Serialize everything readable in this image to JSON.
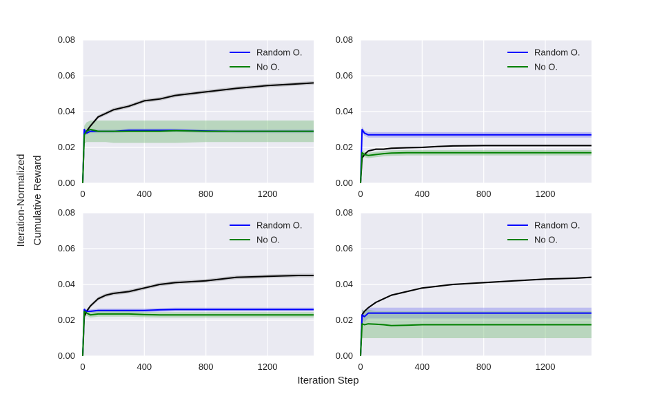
{
  "figure": {
    "ylabel_lines": [
      "Iteration-Normalized",
      "Cumulative Reward"
    ],
    "xlabel": "Iteration Step"
  },
  "colors": {
    "background": "#eaeaf2",
    "grid": "#ffffff",
    "black_line": "#000000",
    "random": "#0000ff",
    "no": "#008000",
    "random_band": "#8888ee",
    "no_band": "#7fbf7f",
    "black_band": "#999999"
  },
  "chart_data": [
    {
      "type": "line",
      "panel": "top-left",
      "xlim": [
        0,
        1500
      ],
      "ylim": [
        0,
        0.08
      ],
      "xticks": [
        "0",
        "400",
        "800",
        "1200"
      ],
      "yticks": [
        "0.00",
        "0.02",
        "0.04",
        "0.06",
        "0.08"
      ],
      "legend": "top-right",
      "grid": true,
      "x": [
        0,
        10,
        25,
        50,
        100,
        150,
        200,
        300,
        400,
        500,
        600,
        800,
        1000,
        1200,
        1400,
        1500
      ],
      "series": [
        {
          "name": "",
          "color": "black",
          "values": [
            0.0,
            0.027,
            0.029,
            0.032,
            0.037,
            0.039,
            0.041,
            0.043,
            0.046,
            0.047,
            0.049,
            0.051,
            0.053,
            0.0545,
            0.0555,
            0.056
          ],
          "band": 0.001
        },
        {
          "name": "Random O.",
          "color": "random",
          "values": [
            0.0,
            0.03,
            0.028,
            0.029,
            0.029,
            0.029,
            0.029,
            0.0295,
            0.0295,
            0.0295,
            0.0295,
            0.0292,
            0.029,
            0.029,
            0.029,
            0.029
          ],
          "band": 0.001
        },
        {
          "name": "No O.",
          "color": "no",
          "values": [
            0.0,
            0.027,
            0.029,
            0.03,
            0.029,
            0.029,
            0.029,
            0.029,
            0.029,
            0.029,
            0.0293,
            0.029,
            0.029,
            0.029,
            0.029,
            0.029
          ],
          "band_lower": [
            0.0,
            0.022,
            0.023,
            0.023,
            0.023,
            0.023,
            0.0225,
            0.0225,
            0.0225,
            0.0225,
            0.0225,
            0.023,
            0.023,
            0.023,
            0.023,
            0.023
          ],
          "band_upper": [
            0.0,
            0.032,
            0.034,
            0.035,
            0.035,
            0.035,
            0.035,
            0.035,
            0.035,
            0.035,
            0.035,
            0.035,
            0.035,
            0.035,
            0.035,
            0.035
          ]
        }
      ]
    },
    {
      "type": "line",
      "panel": "top-right",
      "xlim": [
        0,
        1500
      ],
      "ylim": [
        0,
        0.08
      ],
      "xticks": [
        "0",
        "400",
        "800",
        "1200"
      ],
      "yticks": [
        "0.00",
        "0.02",
        "0.04",
        "0.06",
        "0.08"
      ],
      "legend": "top-right",
      "grid": true,
      "x": [
        0,
        10,
        25,
        50,
        100,
        150,
        200,
        300,
        400,
        500,
        600,
        800,
        1000,
        1200,
        1400,
        1500
      ],
      "series": [
        {
          "name": "",
          "color": "black",
          "values": [
            0.0,
            0.014,
            0.016,
            0.018,
            0.019,
            0.019,
            0.0195,
            0.0198,
            0.02,
            0.0205,
            0.0208,
            0.021,
            0.021,
            0.021,
            0.021,
            0.021
          ],
          "band": 0.0005
        },
        {
          "name": "Random O.",
          "color": "random",
          "values": [
            0.0,
            0.03,
            0.028,
            0.027,
            0.027,
            0.027,
            0.027,
            0.027,
            0.027,
            0.027,
            0.027,
            0.027,
            0.027,
            0.027,
            0.027,
            0.027
          ],
          "band": 0.0015
        },
        {
          "name": "No O.",
          "color": "no",
          "values": [
            0.0,
            0.017,
            0.016,
            0.0155,
            0.016,
            0.0165,
            0.0168,
            0.017,
            0.017,
            0.017,
            0.017,
            0.017,
            0.017,
            0.017,
            0.017,
            0.017
          ],
          "band": 0.0015
        }
      ]
    },
    {
      "type": "line",
      "panel": "bottom-left",
      "xlim": [
        0,
        1500
      ],
      "ylim": [
        0,
        0.08
      ],
      "xticks": [
        "0",
        "400",
        "800",
        "1200"
      ],
      "yticks": [
        "0.00",
        "0.02",
        "0.04",
        "0.06",
        "0.08"
      ],
      "legend": "top-right",
      "grid": true,
      "x": [
        0,
        10,
        25,
        50,
        100,
        150,
        200,
        300,
        400,
        500,
        600,
        800,
        1000,
        1200,
        1400,
        1500
      ],
      "series": [
        {
          "name": "",
          "color": "black",
          "values": [
            0.0,
            0.022,
            0.025,
            0.028,
            0.032,
            0.034,
            0.035,
            0.036,
            0.038,
            0.04,
            0.041,
            0.042,
            0.044,
            0.0445,
            0.045,
            0.045
          ],
          "band": 0.001
        },
        {
          "name": "Random O.",
          "color": "random",
          "values": [
            0.0,
            0.026,
            0.025,
            0.025,
            0.0255,
            0.0255,
            0.0255,
            0.0255,
            0.0255,
            0.0258,
            0.026,
            0.026,
            0.026,
            0.026,
            0.026,
            0.026
          ],
          "band": 0.001
        },
        {
          "name": "No O.",
          "color": "no",
          "values": [
            0.0,
            0.025,
            0.024,
            0.023,
            0.0235,
            0.0235,
            0.0235,
            0.0235,
            0.0232,
            0.023,
            0.023,
            0.023,
            0.023,
            0.023,
            0.023,
            0.023
          ],
          "band": 0.0015
        }
      ]
    },
    {
      "type": "line",
      "panel": "bottom-right",
      "xlim": [
        0,
        1500
      ],
      "ylim": [
        0,
        0.08
      ],
      "xticks": [
        "0",
        "400",
        "800",
        "1200"
      ],
      "yticks": [
        "0.00",
        "0.02",
        "0.04",
        "0.06",
        "0.08"
      ],
      "legend": "top-right",
      "grid": true,
      "x": [
        0,
        10,
        25,
        50,
        100,
        150,
        200,
        300,
        400,
        500,
        600,
        800,
        1000,
        1200,
        1400,
        1500
      ],
      "series": [
        {
          "name": "",
          "color": "black",
          "values": [
            0.0,
            0.023,
            0.025,
            0.027,
            0.03,
            0.032,
            0.034,
            0.036,
            0.038,
            0.039,
            0.04,
            0.041,
            0.042,
            0.043,
            0.0435,
            0.044
          ],
          "band": 0.0005
        },
        {
          "name": "Random O.",
          "color": "random",
          "values": [
            0.0,
            0.023,
            0.022,
            0.024,
            0.024,
            0.024,
            0.024,
            0.024,
            0.024,
            0.024,
            0.024,
            0.024,
            0.024,
            0.024,
            0.024,
            0.024
          ],
          "band": 0.003
        },
        {
          "name": "No O.",
          "color": "no",
          "values": [
            0.0,
            0.018,
            0.0175,
            0.018,
            0.0178,
            0.0175,
            0.017,
            0.0172,
            0.0175,
            0.0175,
            0.0175,
            0.0175,
            0.0175,
            0.0175,
            0.0175,
            0.0175
          ],
          "band_lower": [
            0.0,
            0.01,
            0.01,
            0.01,
            0.01,
            0.01,
            0.01,
            0.01,
            0.01,
            0.01,
            0.01,
            0.01,
            0.01,
            0.01,
            0.01,
            0.01
          ],
          "band_upper": [
            0.0,
            0.026,
            0.025,
            0.026,
            0.025,
            0.025,
            0.025,
            0.025,
            0.025,
            0.025,
            0.025,
            0.025,
            0.025,
            0.025,
            0.025,
            0.025
          ]
        }
      ]
    }
  ]
}
